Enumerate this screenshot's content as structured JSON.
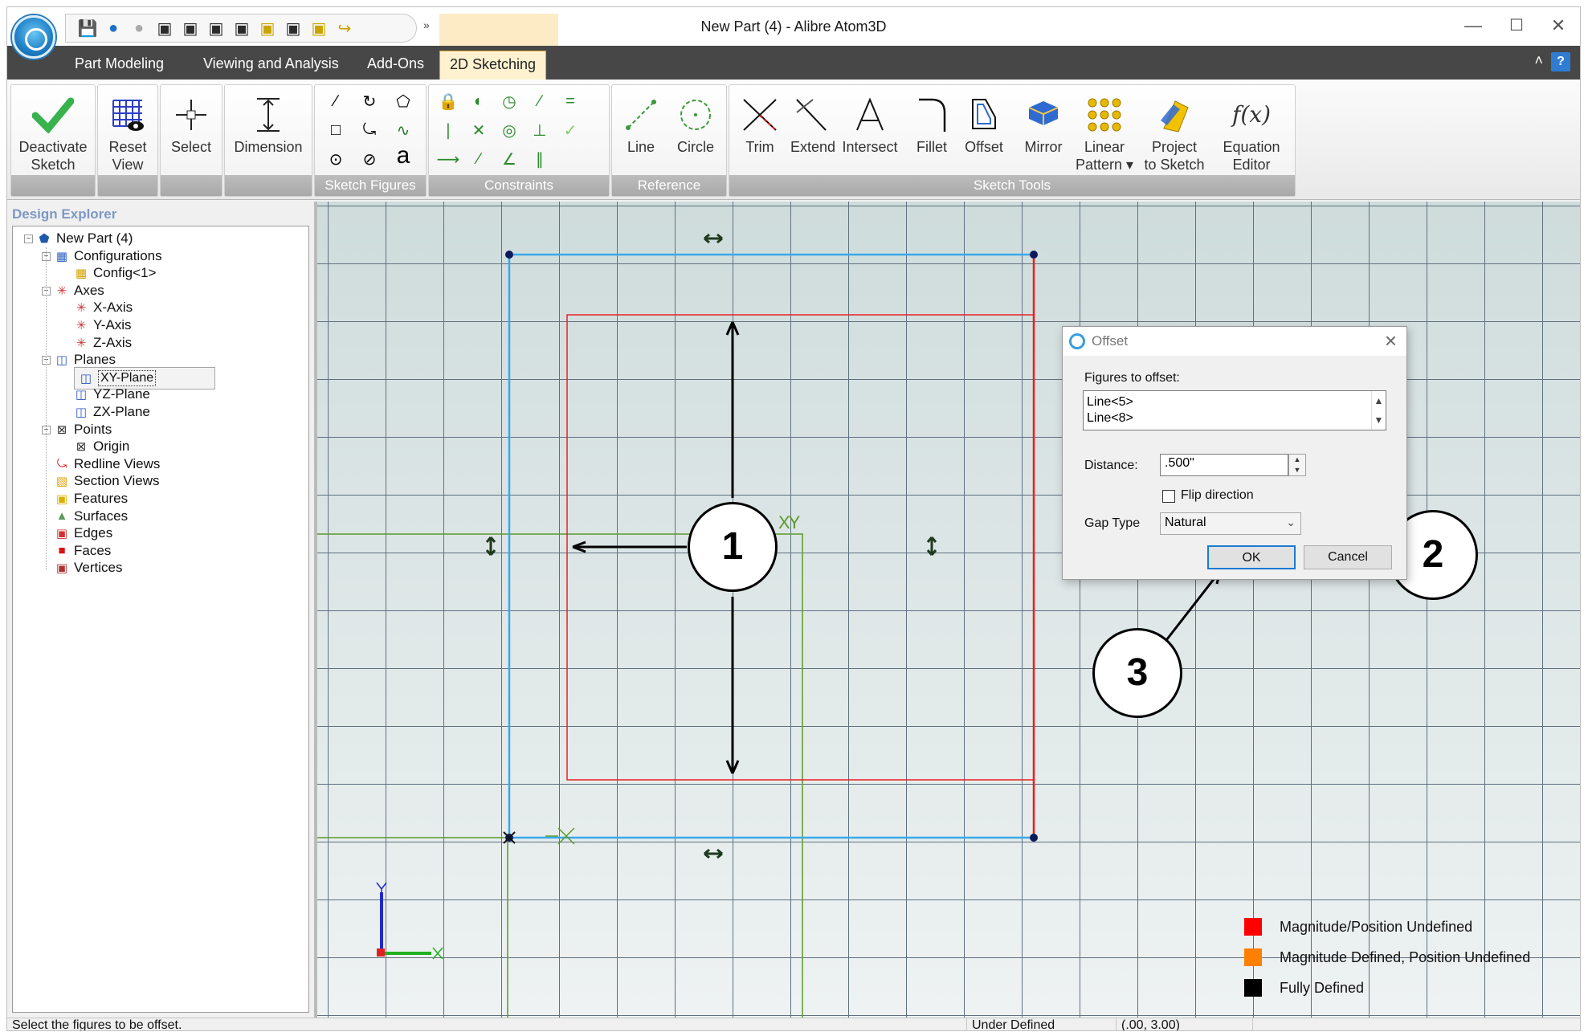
{
  "window": {
    "title": "New Part (4) - Alibre Atom3D",
    "min_glyph": "—",
    "max_glyph": "☐",
    "close_glyph": "✕"
  },
  "quick_access": {
    "icons": [
      "save-icon",
      "undo-icon",
      "redo-icon",
      "cube-view-icon",
      "cube-view-icon",
      "cube-view-icon",
      "cube-view-icon",
      "cube-view-icon",
      "cube-view-icon",
      "cube-view-icon",
      "sketch-icon"
    ],
    "more_glyph": "»"
  },
  "tabs": [
    {
      "label": "Part Modeling",
      "active": false
    },
    {
      "label": "Viewing and Analysis",
      "active": false
    },
    {
      "label": "Add-Ons",
      "active": false
    },
    {
      "label": "2D Sketching",
      "active": true
    }
  ],
  "tabbar": {
    "collapse_glyph": "˄",
    "help_glyph": "?"
  },
  "ribbon": {
    "deactivate": {
      "line1": "Deactivate",
      "line2": "Sketch"
    },
    "reset": {
      "line1": "Reset",
      "line2": "View"
    },
    "select": "Select",
    "dimension": "Dimension",
    "sketch_figures": "Sketch Figures",
    "constraints": "Constraints",
    "reference": "Reference",
    "sketch_tools": "Sketch Tools",
    "line": "Line",
    "circle": "Circle",
    "trim": "Trim",
    "extend": "Extend",
    "intersect": "Intersect",
    "fillet": "Fillet",
    "offset": "Offset",
    "mirror": "Mirror",
    "linear_pattern": {
      "line1": "Linear",
      "line2": "Pattern ▾"
    },
    "project": {
      "line1": "Project",
      "line2": "to Sketch"
    },
    "equation": {
      "icon": "f(x)",
      "line1": "Equation",
      "line2": "Editor"
    },
    "text_tool_glyph": "a"
  },
  "explorer": {
    "header": "Design Explorer",
    "nodes": [
      {
        "label": "New Part (4)",
        "icon": "part-icon"
      },
      {
        "label": "Configurations",
        "icon": "configurations-icon"
      },
      {
        "label": "Config<1>",
        "icon": "config-icon"
      },
      {
        "label": "Axes",
        "icon": "axes-icon"
      },
      {
        "label": "X-Axis",
        "icon": "axis-icon"
      },
      {
        "label": "Y-Axis",
        "icon": "axis-icon"
      },
      {
        "label": "Z-Axis",
        "icon": "axis-icon"
      },
      {
        "label": "Planes",
        "icon": "planes-icon"
      },
      {
        "label": "XY-Plane",
        "icon": "plane-icon"
      },
      {
        "label": "YZ-Plane",
        "icon": "plane-icon"
      },
      {
        "label": "ZX-Plane",
        "icon": "plane-icon"
      },
      {
        "label": "Points",
        "icon": "points-icon"
      },
      {
        "label": "Origin",
        "icon": "point-icon"
      },
      {
        "label": "Redline Views",
        "icon": "redline-icon"
      },
      {
        "label": "Section Views",
        "icon": "section-icon"
      },
      {
        "label": "Features",
        "icon": "features-icon"
      },
      {
        "label": "Surfaces",
        "icon": "surfaces-icon"
      },
      {
        "label": "Edges",
        "icon": "edges-icon"
      },
      {
        "label": "Faces",
        "icon": "faces-icon"
      },
      {
        "label": "Vertices",
        "icon": "vertices-icon"
      }
    ]
  },
  "canvas": {
    "axis_label": "XY",
    "legend": [
      {
        "label": "Magnitude/Position Undefined",
        "color": "#ff0000"
      },
      {
        "label": "Magnitude Defined, Position Undefined",
        "color": "#ff8000"
      },
      {
        "label": "Fully Defined",
        "color": "#000000"
      }
    ],
    "callouts": [
      "1",
      "2",
      "3"
    ],
    "colors": {
      "blue": "#3aa8e8",
      "red": "#e82020",
      "green": "#5a9a2a"
    }
  },
  "dialog": {
    "title": "Offset",
    "figures_label": "Figures to offset:",
    "figures": [
      "Line<5>",
      "Line<8>"
    ],
    "distance_label": "Distance:",
    "distance_value": ".500\"",
    "flip_label": "Flip direction",
    "gap_label": "Gap Type",
    "gap_value": "Natural",
    "ok": "OK",
    "cancel": "Cancel"
  },
  "status": {
    "message": "Select the figures to be offset.",
    "state": "Under Defined",
    "coords": "(.00, 3.00)"
  }
}
